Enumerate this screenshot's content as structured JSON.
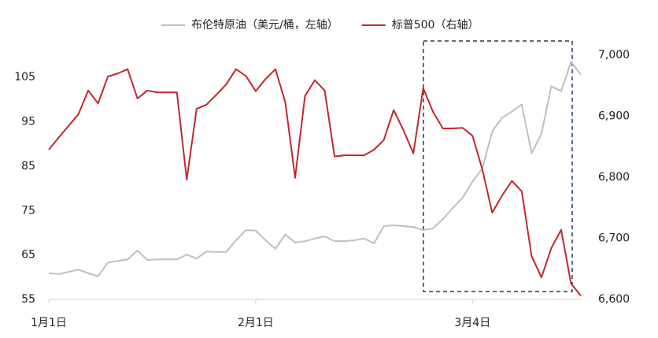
{
  "chart_data": {
    "type": "line",
    "categories": [
      "1月1日",
      null,
      null,
      null,
      null,
      null,
      null,
      null,
      null,
      null,
      null,
      null,
      null,
      null,
      null,
      null,
      null,
      null,
      null,
      null,
      null,
      "2月1日",
      null,
      null,
      null,
      null,
      null,
      null,
      null,
      null,
      null,
      null,
      null,
      null,
      null,
      null,
      null,
      null,
      null,
      null,
      null,
      null,
      null,
      "3月4日",
      null,
      null,
      null,
      null,
      null,
      null,
      null,
      null,
      null,
      null,
      null
    ],
    "series": [
      {
        "name": "布伦特原油（美元/桶，左轴）",
        "color": "#bfbfbf",
        "values": [
          60.9,
          60.7,
          61.2,
          61.7,
          60.9,
          60.2,
          63.3,
          63.7,
          64,
          66,
          63.9,
          64,
          64,
          64,
          65.1,
          64.2,
          65.8,
          65.7,
          65.7,
          68.3,
          70.6,
          70.5,
          68.3,
          66.4,
          69.6,
          67.8,
          68.1,
          68.7,
          69.2,
          68.1,
          68.1,
          68.3,
          68.7,
          67.6,
          71.5,
          71.7,
          71.5,
          71.3,
          70.6,
          71,
          73.1,
          75.6,
          77.9,
          81.5,
          84.5,
          92.8,
          95.9,
          97.3,
          98.9,
          87.9,
          92.3,
          103,
          101.9,
          108.5,
          105.6
        ]
      },
      {
        "name": "标普500（右轴）",
        "color": "#c0282d",
        "axis": "y2",
        "values": [
          6845,
          6865,
          6884,
          6903,
          6942,
          6921,
          6965,
          6970,
          6977,
          6929,
          6942,
          6939,
          6939,
          6939,
          6796,
          6912,
          6919,
          6935,
          6952,
          6977,
          6966,
          6941,
          6961,
          6977,
          6923,
          6799,
          6933,
          6959,
          6942,
          6834,
          6836,
          6836,
          6836,
          6845,
          6861,
          6910,
          6877,
          6839,
          6946,
          6907,
          6880,
          6880,
          6881,
          6868,
          6813,
          6742,
          6770,
          6794,
          6777,
          6671,
          6636,
          6684,
          6714,
          6626,
          6606
        ]
      }
    ],
    "ylim": [
      55,
      110
    ],
    "yticks": [
      55,
      65,
      75,
      85,
      95,
      105
    ],
    "y2lim": [
      6600,
      7000
    ],
    "y2ticks": [
      {
        "value": 6600,
        "label": "6,600"
      },
      {
        "value": 6700,
        "label": "6,700"
      },
      {
        "value": 6800,
        "label": "6,800"
      },
      {
        "value": 6900,
        "label": "6,900"
      },
      {
        "value": 7000,
        "label": "7,000"
      }
    ],
    "legend": "top",
    "grid": false
  }
}
